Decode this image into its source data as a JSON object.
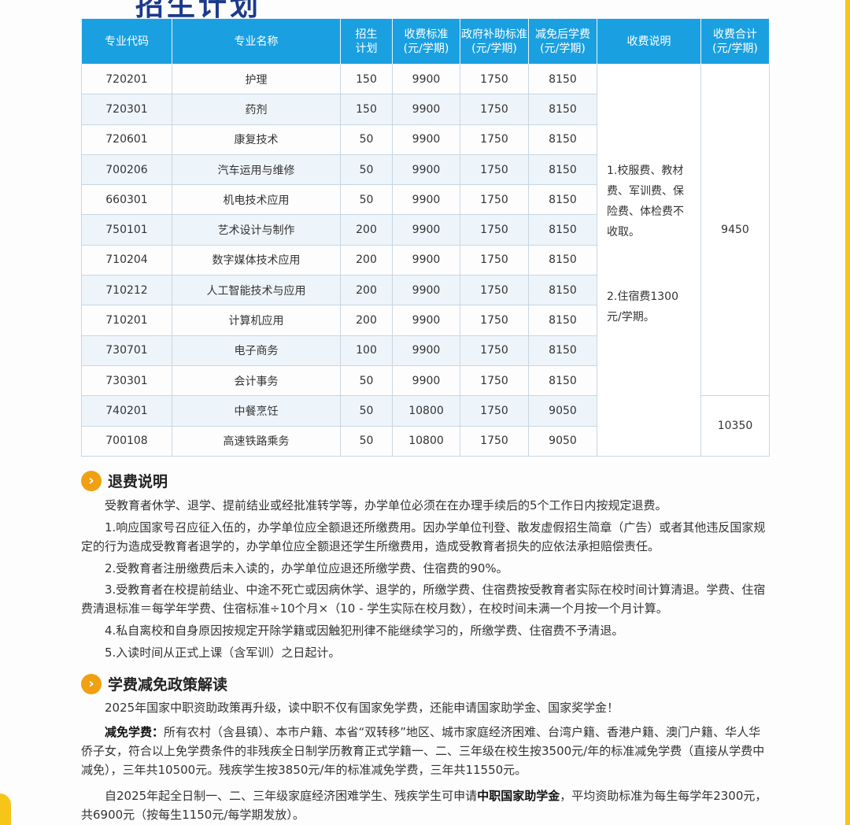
{
  "title": "招生计划",
  "table": {
    "headers": [
      "专业代码",
      "专业名称",
      "招生计划",
      "收费标准(元/学期)",
      "政府补助标准(元/学期)",
      "减免后学费(元/学期)",
      "收费说明",
      "收费合计(元/学期)"
    ],
    "header_lines": [
      [
        "专业代码"
      ],
      [
        "专业名称"
      ],
      [
        "招生",
        "计划"
      ],
      [
        "收费标准",
        "(元/学期)"
      ],
      [
        "政府补助标准",
        "(元/学期)"
      ],
      [
        "减免后学费",
        "(元/学期)"
      ],
      [
        "收费说明"
      ],
      [
        "收费合计",
        "(元/学期)"
      ]
    ],
    "rows": [
      [
        "720201",
        "护理",
        "150",
        "9900",
        "1750",
        "8150"
      ],
      [
        "720301",
        "药剂",
        "150",
        "9900",
        "1750",
        "8150"
      ],
      [
        "720601",
        "康复技术",
        "50",
        "9900",
        "1750",
        "8150"
      ],
      [
        "700206",
        "汽车运用与维修",
        "50",
        "9900",
        "1750",
        "8150"
      ],
      [
        "660301",
        "机电技术应用",
        "50",
        "9900",
        "1750",
        "8150"
      ],
      [
        "750101",
        "艺术设计与制作",
        "200",
        "9900",
        "1750",
        "8150"
      ],
      [
        "710204",
        "数字媒体技术应用",
        "200",
        "9900",
        "1750",
        "8150"
      ],
      [
        "710212",
        "人工智能技术与应用",
        "200",
        "9900",
        "1750",
        "8150"
      ],
      [
        "710201",
        "计算机应用",
        "200",
        "9900",
        "1750",
        "8150"
      ],
      [
        "730701",
        "电子商务",
        "100",
        "9900",
        "1750",
        "8150"
      ],
      [
        "730301",
        "会计事务",
        "50",
        "9900",
        "1750",
        "8150"
      ],
      [
        "740201",
        "中餐烹饪",
        "50",
        "10800",
        "1750",
        "9050"
      ],
      [
        "700108",
        "高速铁路乘务",
        "50",
        "10800",
        "1750",
        "9050"
      ]
    ],
    "fee_note_1": "1.校服费、教材费、军训费、保险费、体检费不收取。",
    "fee_note_2": "2.住宿费1300元/学期。",
    "total_1": "9450",
    "total_2": "10350",
    "header_color": "#1aa0e0"
  },
  "refund": {
    "heading": "退费说明",
    "paragraphs": [
      "受教育者休学、退学、提前结业或经批准转学等，办学单位必须在在办理手续后的5个工作日内按规定退费。",
      "1.响应国家号召应征入伍的，办学单位应全额退还所缴费用。因办学单位刊登、散发虚假招生简章（广告）或者其他违反国家规定的行为造成受教育者退学的，办学单位应全额退还学生所缴费用，造成受教育者损失的应依法承担赔偿责任。",
      "2.受教育者注册缴费后未入读的，办学单位应退还所缴学费、住宿费的90%。",
      "3.受教育者在校提前结业、中途不死亡或因病休学、退学的，所缴学费、住宿费按受教育者实际在校时间计算清退。学费、住宿费清退标准＝每学年学费、住宿标准÷10个月×（10 - 学生实际在校月数），在校时间未满一个月按一个月计算。",
      "4.私自离校和自身原因按规定开除学籍或因触犯刑律不能继续学习的，所缴学费、住宿费不予清退。",
      "5.入读时间从正式上课（含军训）之日起计。"
    ]
  },
  "policy": {
    "heading": "学费减免政策解读",
    "intro": "2025年国家中职资助政策再升级，读中职不仅有国家免学费，还能申请国家助学金、国家奖学金！",
    "p2_bold": "减免学费：",
    "p2_text": "所有农村（含县镇）、本市户籍、本省“双转移”地区、城市家庭经济困难、台湾户籍、香港户籍、澳门户籍、华人华侨子女，符合以上免学费条件的非残疾全日制学历教育正式学籍一、二、三年级在校生按3500元/年的标准减免学费（直接从学费中减免），三年共10500元。残疾学生按3850元/年的标准减免学费，三年共11550元。",
    "p3_a": "自2025年起全日制一、二、三年级家庭经济困难学生、残疾学生可申请",
    "p3_bold": "中职国家助学金",
    "p3_b": "，平均资助标准为每生每学年2300元，共6900元（按每生1150元/每学期发放）。"
  },
  "icons": {
    "section": "chevron-right-icon"
  },
  "accent": "#f0a010"
}
